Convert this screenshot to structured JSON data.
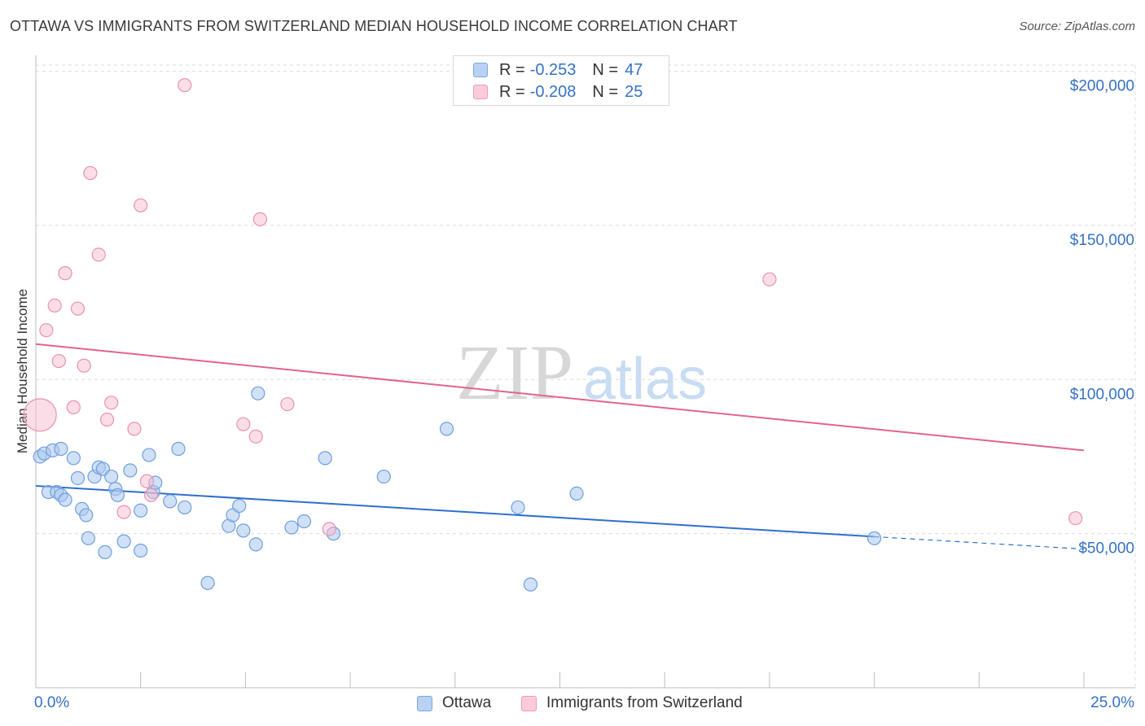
{
  "title": "OTTAWA VS IMMIGRANTS FROM SWITZERLAND MEDIAN HOUSEHOLD INCOME CORRELATION CHART",
  "source": "Source: ZipAtlas.com",
  "watermark": {
    "zip": "ZIP",
    "atlas": "atlas"
  },
  "legend": {
    "rows": [
      {
        "r_label": "R =",
        "r_value": "-0.253",
        "n_label": "N =",
        "n_value": "47"
      },
      {
        "r_label": "R =",
        "r_value": "-0.208",
        "n_label": "N =",
        "n_value": "25"
      }
    ]
  },
  "chart_data": {
    "type": "scatter",
    "title": "OTTAWA VS IMMIGRANTS FROM SWITZERLAND MEDIAN HOUSEHOLD INCOME CORRELATION CHART",
    "xlabel": "",
    "ylabel": "Median Household Income",
    "xlim": [
      0,
      25
    ],
    "ylim": [
      0,
      202000
    ],
    "x_tick_labels": [
      "0.0%",
      "25.0%"
    ],
    "y_ticks": [
      50000,
      100000,
      150000,
      200000
    ],
    "y_tick_labels": [
      "$50,000",
      "$100,000",
      "$150,000",
      "$200,000"
    ],
    "grid": true,
    "colors": {
      "ottawa_fill": "#a9c7ef",
      "ottawa_stroke": "#6f9fdc",
      "ottawa_line": "#2e6fce",
      "swiss_fill": "#f6bcd0",
      "swiss_stroke": "#ea92b1",
      "swiss_line": "#e2638f",
      "tick_label": "#3571c4"
    },
    "series": [
      {
        "name": "Ottawa",
        "r": -0.253,
        "n": 47,
        "trend": {
          "x_start": 0,
          "y_start": 65500,
          "x_end": 20,
          "y_end": 49000,
          "dash_x_end": 25,
          "dash_y_end": 45000
        },
        "points": [
          [
            0.1,
            75000
          ],
          [
            0.2,
            76000
          ],
          [
            0.4,
            77000
          ],
          [
            0.6,
            77500
          ],
          [
            0.3,
            63500
          ],
          [
            0.5,
            63500
          ],
          [
            0.6,
            62500
          ],
          [
            0.7,
            61000
          ],
          [
            0.9,
            74500
          ],
          [
            1.0,
            68000
          ],
          [
            1.1,
            58000
          ],
          [
            1.2,
            56000
          ],
          [
            1.25,
            48500
          ],
          [
            1.4,
            68500
          ],
          [
            1.5,
            71500
          ],
          [
            1.6,
            71000
          ],
          [
            1.65,
            44000
          ],
          [
            1.8,
            68500
          ],
          [
            1.9,
            64500
          ],
          [
            1.95,
            62500
          ],
          [
            2.1,
            47500
          ],
          [
            2.25,
            70500
          ],
          [
            2.5,
            44500
          ],
          [
            2.5,
            57500
          ],
          [
            2.7,
            75500
          ],
          [
            2.8,
            63500
          ],
          [
            2.85,
            66500
          ],
          [
            3.2,
            60500
          ],
          [
            3.4,
            77500
          ],
          [
            3.55,
            58500
          ],
          [
            4.1,
            34000
          ],
          [
            4.6,
            52500
          ],
          [
            4.7,
            56000
          ],
          [
            4.85,
            59000
          ],
          [
            4.95,
            51000
          ],
          [
            5.25,
            46500
          ],
          [
            5.3,
            95500
          ],
          [
            6.1,
            52000
          ],
          [
            6.4,
            54000
          ],
          [
            6.9,
            74500
          ],
          [
            7.1,
            50000
          ],
          [
            8.3,
            68500
          ],
          [
            9.8,
            84000
          ],
          [
            11.5,
            58500
          ],
          [
            11.8,
            33500
          ],
          [
            12.9,
            63000
          ],
          [
            20.0,
            48500
          ]
        ]
      },
      {
        "name": "Immigrants from Switzerland",
        "r": -0.208,
        "n": 25,
        "trend": {
          "x_start": 0,
          "y_start": 111500,
          "x_end": 25,
          "y_end": 77000
        },
        "points": [
          [
            0.1,
            88500
          ],
          [
            0.25,
            116000
          ],
          [
            0.45,
            124000
          ],
          [
            0.55,
            106000
          ],
          [
            0.7,
            134500
          ],
          [
            0.9,
            91000
          ],
          [
            1.0,
            123000
          ],
          [
            1.15,
            104500
          ],
          [
            1.3,
            167000
          ],
          [
            1.5,
            140500
          ],
          [
            1.7,
            87000
          ],
          [
            1.8,
            92500
          ],
          [
            2.1,
            57000
          ],
          [
            2.35,
            84000
          ],
          [
            2.5,
            156500
          ],
          [
            2.65,
            67000
          ],
          [
            2.75,
            62500
          ],
          [
            3.55,
            195500
          ],
          [
            4.95,
            85500
          ],
          [
            5.25,
            81500
          ],
          [
            5.35,
            152000
          ],
          [
            6.0,
            92000
          ],
          [
            7.0,
            51500
          ],
          [
            17.5,
            132500
          ],
          [
            24.8,
            55000
          ]
        ]
      }
    ]
  }
}
